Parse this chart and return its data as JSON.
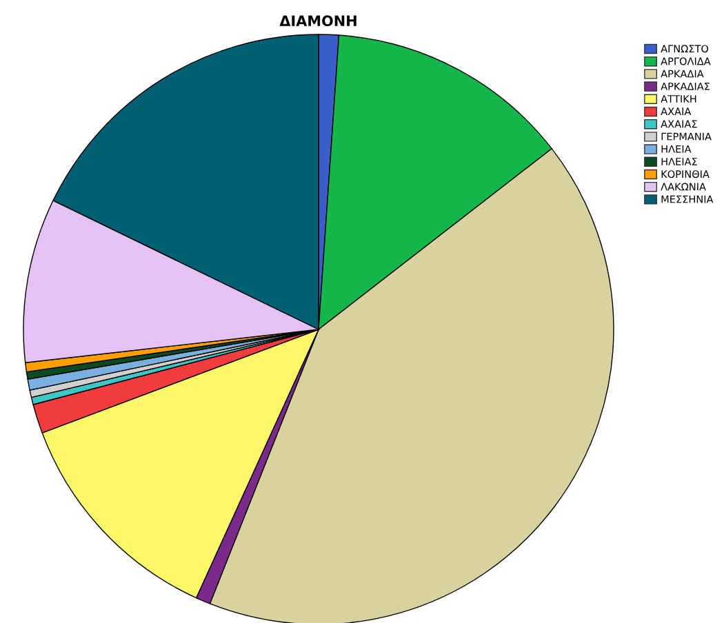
{
  "chart_data": {
    "type": "pie",
    "title": "ΔΙΑΜΟΝΗ",
    "categories": [
      "ΑΓΝΩΣΤΟ",
      "ΑΡΓΟΛΙΔΑ",
      "ΑΡΚΑΔΙΑ",
      "ΑΡΚΑΔΙΑΣ",
      "ΑΤΤΙΚΗ",
      "ΑΧΑΙΑ",
      "ΑΧΑΙΑΣ",
      "ΓΕΡΜΑΝΙΑ",
      "ΗΛΕΙΑ",
      "ΗΛΕΙΑΣ",
      "ΚΟΡΙΝΘΙΑ",
      "ΛΑΚΩΝΙΑ",
      "ΜΕΣΣΗΝΙΑ"
    ],
    "values": [
      1.1,
      13.4,
      41.5,
      0.8,
      12.5,
      1.6,
      0.4,
      0.4,
      0.6,
      0.4,
      0.5,
      9.0,
      17.8
    ],
    "colors": [
      "#3a5fcd",
      "#14b84a",
      "#d8d29e",
      "#7b2a8a",
      "#fdf86a",
      "#f03c3c",
      "#3ec6c6",
      "#d0d0d0",
      "#7ab0e0",
      "#0b4a23",
      "#ff9e00",
      "#e4c2f4",
      "#005f73"
    ],
    "legend": "top right"
  }
}
